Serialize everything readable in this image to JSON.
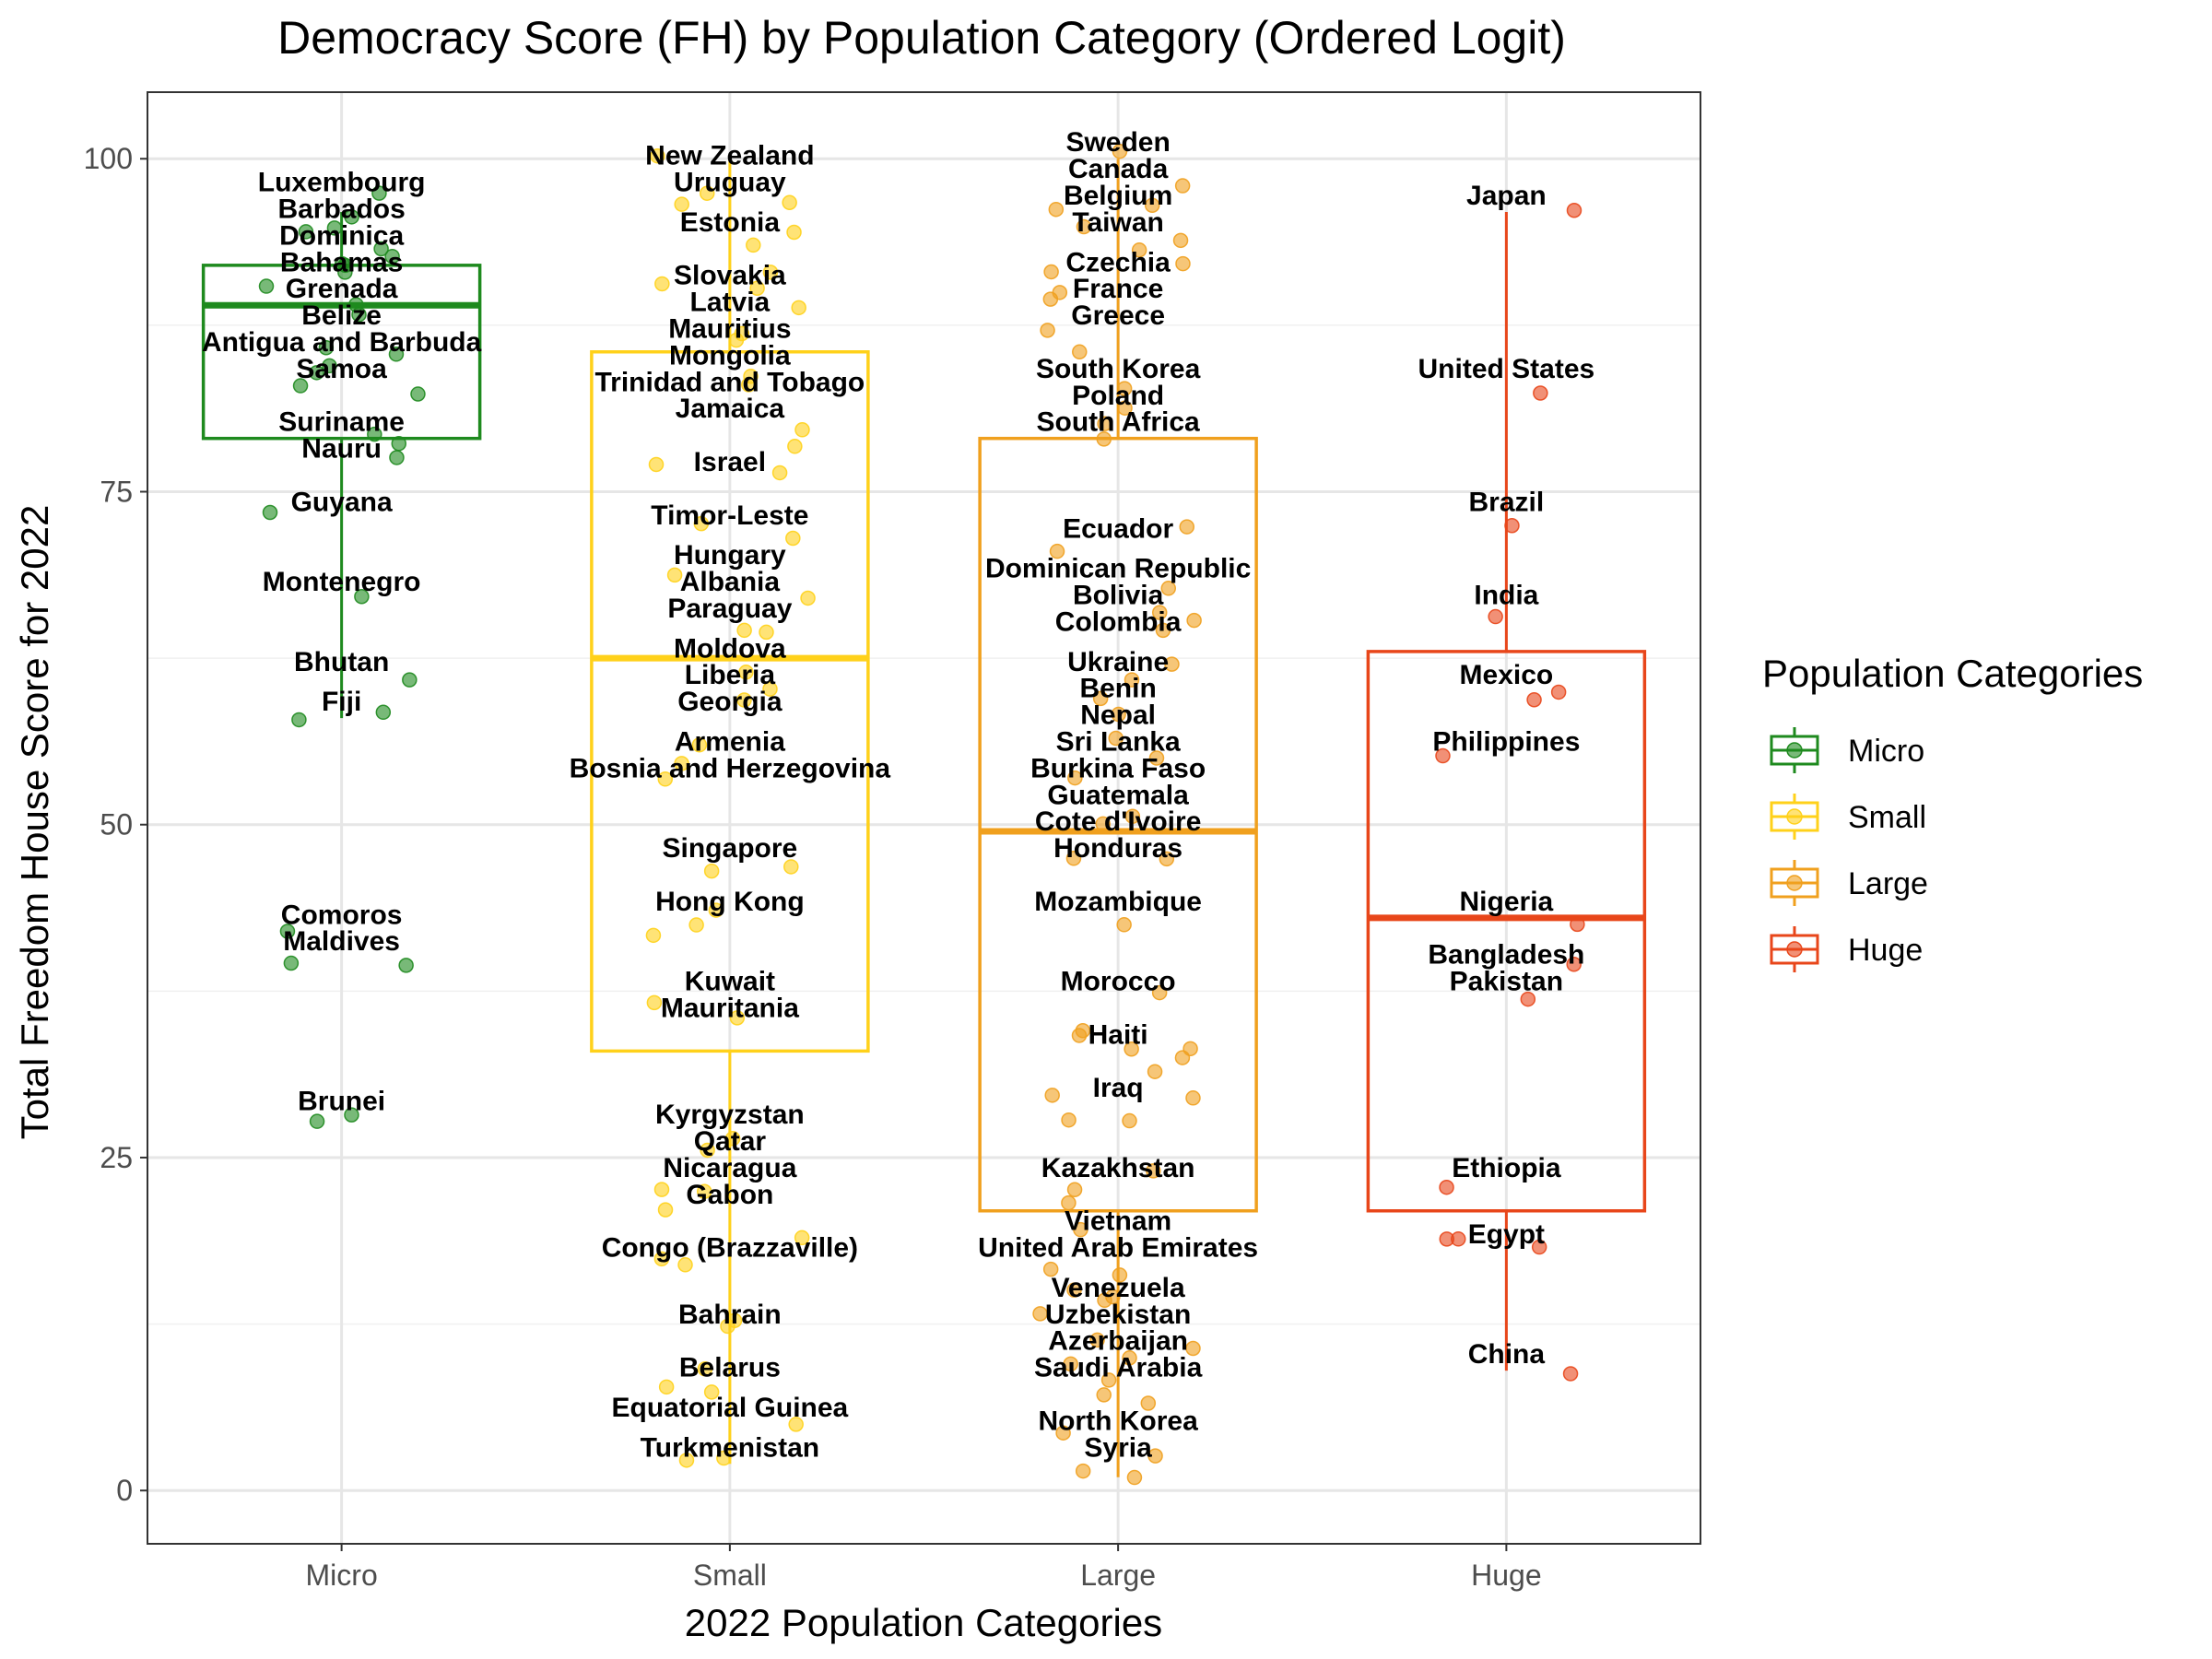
{
  "chart_data": {
    "type": "boxplot",
    "title": "Democracy Score (FH) by Population Category (Ordered Logit)",
    "xlabel": "2022 Population Categories",
    "ylabel": "Total Freedom House Score for 2022",
    "ylim": [
      -4,
      105
    ],
    "yticks": [
      0,
      25,
      50,
      75,
      100
    ],
    "grid": true,
    "legend": {
      "title": "Population Categories",
      "position": "right",
      "entries": [
        "Micro",
        "Small",
        "Large",
        "Huge"
      ]
    },
    "categories": [
      "Micro",
      "Small",
      "Large",
      "Huge"
    ],
    "colors": {
      "Micro": "#1e8a1e",
      "Small": "#ffd11a",
      "Large": "#f0a01e",
      "Huge": "#e8461a"
    },
    "boxes": [
      {
        "category": "Micro",
        "whisker_low": 58,
        "q1": 79,
        "median": 89,
        "q3": 92,
        "whisker_high": 96
      },
      {
        "category": "Small",
        "whisker_low": 2,
        "q1": 33,
        "median": 62.5,
        "q3": 85.5,
        "whisker_high": 100
      },
      {
        "category": "Large",
        "whisker_low": 1,
        "q1": 21,
        "median": 49.5,
        "q3": 79,
        "whisker_high": 100
      },
      {
        "category": "Huge",
        "whisker_low": 9,
        "q1": 21,
        "median": 43,
        "q3": 63,
        "whisker_high": 96
      }
    ],
    "labels": [
      {
        "category": "Micro",
        "points": [
          [
            "Luxembourg",
            97
          ],
          [
            "Barbados",
            95
          ],
          [
            "Dominica",
            93
          ],
          [
            "Bahamas",
            91
          ],
          [
            "Grenada",
            89
          ],
          [
            "Belize",
            87
          ],
          [
            "Antigua and Barbuda",
            85
          ],
          [
            "Samoa",
            83
          ],
          [
            "Suriname",
            79
          ],
          [
            "Nauru",
            77
          ],
          [
            "Guyana",
            73
          ],
          [
            "Montenegro",
            67
          ],
          [
            "Bhutan",
            61
          ],
          [
            "Fiji",
            58
          ],
          [
            "Comoros",
            42
          ],
          [
            "Maldives",
            40
          ],
          [
            "Brunei",
            28
          ]
        ]
      },
      {
        "category": "Small",
        "points": [
          [
            "New Zealand",
            99
          ],
          [
            "Uruguay",
            97
          ],
          [
            "Estonia",
            94
          ],
          [
            "Slovakia",
            90
          ],
          [
            "Latvia",
            88
          ],
          [
            "Mauritius",
            86
          ],
          [
            "Mongolia",
            84
          ],
          [
            "Trinidad and Tobago",
            82
          ],
          [
            "Jamaica",
            80
          ],
          [
            "Israel",
            76
          ],
          [
            "Timor-Leste",
            72
          ],
          [
            "Hungary",
            69
          ],
          [
            "Albania",
            67
          ],
          [
            "Paraguay",
            65
          ],
          [
            "Moldova",
            62
          ],
          [
            "Liberia",
            60
          ],
          [
            "Georgia",
            58
          ],
          [
            "Armenia",
            55
          ],
          [
            "Bosnia and Herzegovina",
            53
          ],
          [
            "Singapore",
            47
          ],
          [
            "Hong Kong",
            43
          ],
          [
            "Kuwait",
            37
          ],
          [
            "Mauritania",
            35
          ],
          [
            "Kyrgyzstan",
            27
          ],
          [
            "Qatar",
            25
          ],
          [
            "Nicaragua",
            23
          ],
          [
            "Gabon",
            21
          ],
          [
            "Congo (Brazzaville)",
            17
          ],
          [
            "Bahrain",
            12
          ],
          [
            "Belarus",
            8
          ],
          [
            "Equatorial Guinea",
            5
          ],
          [
            "Turkmenistan",
            2
          ]
        ]
      },
      {
        "category": "Large",
        "points": [
          [
            "Sweden",
            100
          ],
          [
            "Canada",
            98
          ],
          [
            "Belgium",
            96
          ],
          [
            "Taiwan",
            94
          ],
          [
            "Czechia",
            91
          ],
          [
            "France",
            89
          ],
          [
            "Greece",
            87
          ],
          [
            "South Korea",
            83
          ],
          [
            "Poland",
            81
          ],
          [
            "South Africa",
            79
          ],
          [
            "Ecuador",
            71
          ],
          [
            "Dominican Republic",
            68
          ],
          [
            "Bolivia",
            66
          ],
          [
            "Colombia",
            64
          ],
          [
            "Ukraine",
            61
          ],
          [
            "Benin",
            59
          ],
          [
            "Nepal",
            57
          ],
          [
            "Sri Lanka",
            55
          ],
          [
            "Burkina Faso",
            53
          ],
          [
            "Guatemala",
            51
          ],
          [
            "Cote d'Ivoire",
            49
          ],
          [
            "Honduras",
            47
          ],
          [
            "Mozambique",
            43
          ],
          [
            "Morocco",
            37
          ],
          [
            "Haiti",
            33
          ],
          [
            "Iraq",
            29
          ],
          [
            "Kazakhstan",
            23
          ],
          [
            "Vietnam",
            19
          ],
          [
            "United Arab Emirates",
            17
          ],
          [
            "Venezuela",
            14
          ],
          [
            "Uzbekistan",
            12
          ],
          [
            "Azerbaijan",
            10
          ],
          [
            "Saudi Arabia",
            8
          ],
          [
            "North Korea",
            4
          ],
          [
            "Syria",
            2
          ]
        ]
      },
      {
        "category": "Huge",
        "points": [
          [
            "Japan",
            96
          ],
          [
            "United States",
            83
          ],
          [
            "Brazil",
            73
          ],
          [
            "India",
            66
          ],
          [
            "Mexico",
            60
          ],
          [
            "Philippines",
            55
          ],
          [
            "Nigeria",
            43
          ],
          [
            "Bangladesh",
            39
          ],
          [
            "Pakistan",
            37
          ],
          [
            "Ethiopia",
            23
          ],
          [
            "Egypt",
            18
          ],
          [
            "China",
            9
          ]
        ]
      }
    ],
    "extra_points": [
      {
        "category": "Micro",
        "values": [
          97,
          96,
          95,
          94,
          93,
          93,
          92,
          92,
          91,
          90,
          89,
          88,
          86,
          85,
          84,
          84,
          83,
          82,
          79,
          79,
          77,
          73,
          67,
          61,
          58,
          58,
          42,
          40,
          40,
          28,
          28
        ]
      },
      {
        "category": "Small",
        "values": [
          100,
          97,
          97,
          96,
          95,
          93,
          92,
          91,
          90,
          89,
          87,
          86,
          84,
          83,
          80,
          79,
          77,
          76,
          72,
          72,
          69,
          67,
          65,
          64,
          62,
          60,
          59,
          56,
          55,
          53,
          47,
          47,
          43,
          43,
          42,
          37,
          35,
          27,
          25,
          23,
          23,
          21,
          19,
          17,
          17,
          13,
          12,
          9,
          8,
          7,
          5,
          3,
          2
        ]
      },
      {
        "category": "Large",
        "values": [
          100,
          98,
          97,
          96,
          95,
          94,
          93,
          92,
          91,
          90,
          89,
          87,
          85,
          83,
          81,
          80,
          79,
          72,
          71,
          68,
          66,
          65,
          64,
          62,
          61,
          60,
          58,
          57,
          55,
          53,
          51,
          50,
          48,
          47,
          43,
          37,
          34,
          34,
          33,
          33,
          32,
          32,
          30,
          29,
          28,
          28,
          24,
          23,
          22,
          19,
          17,
          16,
          15,
          14,
          14,
          13,
          11,
          11,
          10,
          9,
          8,
          7,
          7,
          4,
          3,
          1,
          1
        ]
      },
      {
        "category": "Huge",
        "values": [
          96,
          83,
          73,
          66,
          60,
          59,
          55,
          43,
          39,
          37,
          23,
          19,
          19,
          18,
          9
        ]
      }
    ]
  }
}
